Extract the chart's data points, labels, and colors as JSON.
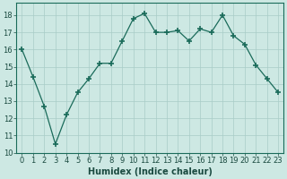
{
  "x": [
    0,
    1,
    2,
    3,
    4,
    5,
    6,
    7,
    8,
    9,
    10,
    11,
    12,
    13,
    14,
    15,
    16,
    17,
    18,
    19,
    20,
    21,
    22,
    23
  ],
  "y": [
    16.0,
    14.4,
    12.7,
    10.5,
    12.2,
    13.5,
    14.3,
    15.2,
    15.2,
    16.5,
    17.8,
    18.1,
    17.0,
    17.0,
    17.1,
    16.5,
    17.2,
    17.0,
    18.0,
    16.8,
    16.3,
    15.1,
    14.3,
    13.5
  ],
  "line_color": "#1a6b5a",
  "marker": "+",
  "marker_size": 4,
  "bg_color": "#cde8e3",
  "grid_color": "#a8ccc7",
  "xlabel": "Humidex (Indice chaleur)",
  "xlim": [
    -0.5,
    23.5
  ],
  "ylim": [
    10,
    18.7
  ],
  "yticks": [
    10,
    11,
    12,
    13,
    14,
    15,
    16,
    17,
    18
  ],
  "xticks": [
    0,
    1,
    2,
    3,
    4,
    5,
    6,
    7,
    8,
    9,
    10,
    11,
    12,
    13,
    14,
    15,
    16,
    17,
    18,
    19,
    20,
    21,
    22,
    23
  ],
  "xlabel_fontsize": 7,
  "tick_fontsize": 6,
  "label_color": "#1a4a40"
}
